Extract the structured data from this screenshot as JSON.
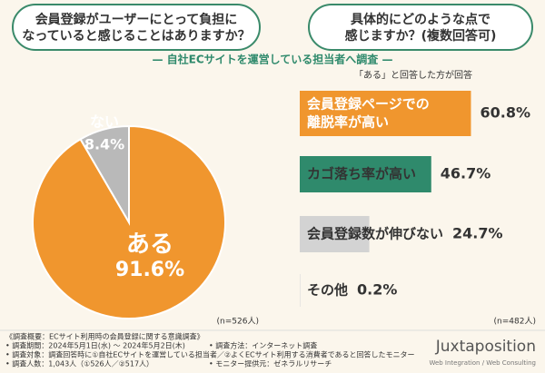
{
  "chart_data": [
    {
      "type": "pie",
      "title": [
        "会員登録がユーザーにとって負担に",
        "なっていると感じることはありますか？"
      ],
      "categories": [
        "ある",
        "ない"
      ],
      "values": [
        91.6,
        8.4
      ],
      "value_labels": [
        "91.6%",
        "8.4%"
      ],
      "colors": [
        "#f0962e",
        "#b9b9b9"
      ],
      "note": "(n=526人)"
    },
    {
      "type": "bar",
      "title": [
        "具体的にどのような点で",
        "感じますか？(複数回答可)"
      ],
      "subtitle": "「ある」と回答した方が回答",
      "categories": [
        [
          "会員登録ページでの",
          "離脱率が高い"
        ],
        [
          "カゴ落ち率が高い"
        ],
        [
          "会員登録数が伸びない"
        ],
        [
          "その他"
        ]
      ],
      "values": [
        60.8,
        46.7,
        24.7,
        0.2
      ],
      "value_labels": [
        "60.8%",
        "46.7%",
        "24.7%",
        "0.2%"
      ],
      "colors": [
        "#f0962e",
        "#2f8a6c",
        "#d3d3d3",
        "#dcdcdc"
      ],
      "note": "(n=482人)"
    }
  ],
  "header": {
    "subtitle": "— 自社ECサイトを運営している担当者へ調査 —"
  },
  "footer": {
    "title": "《調査概要：ECサイト利用時の会員登録に関する意識調査》",
    "left": [
      "• 調査期間：2024年5月1日(水) ～ 2024年5月2日(木)",
      "• 調査対象：調査回答時に①自社ECサイトを運営している担当者／②よくECサイト利用する消費者であると回答したモニター",
      "• 調査人数：1,043人（①526人／②517人）"
    ],
    "right": [
      "• 調査方法：インターネット調査",
      "• モニター提供元：ゼネラルリサーチ"
    ]
  },
  "logo": {
    "name": "Juxtaposition",
    "tagline": "Web Integration / Web Consulting"
  }
}
